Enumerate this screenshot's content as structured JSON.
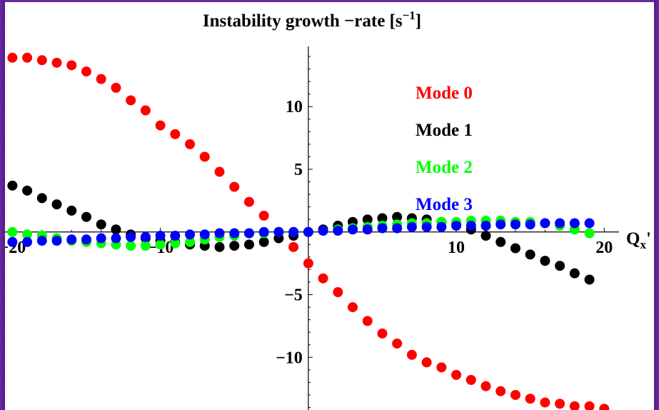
{
  "chart_data": {
    "type": "scatter",
    "title": "Instability growth −rate [s",
    "title_superscript": "−1",
    "title_suffix": "]",
    "xlabel": "Q",
    "xlabel_subscript": "x",
    "xlabel_suffix": "'",
    "ylabel": "",
    "xlim": [
      -20.5,
      21
    ],
    "ylim": [
      -14.2,
      14.8
    ],
    "x_ticks": [
      {
        "value": -20,
        "label": "−20"
      },
      {
        "value": -10,
        "label": "−10"
      },
      {
        "value": 10,
        "label": "10"
      },
      {
        "value": 20,
        "label": "20"
      }
    ],
    "y_ticks": [
      {
        "value": -10,
        "label": "−10"
      },
      {
        "value": -5,
        "label": "−5"
      },
      {
        "value": 5,
        "label": "5"
      },
      {
        "value": 10,
        "label": "10"
      }
    ],
    "grid": false,
    "legend_position": "top-right",
    "series": [
      {
        "name": "Mode 0",
        "color": "#ff0000",
        "points": [
          [
            -20,
            13.9
          ],
          [
            -19,
            13.9
          ],
          [
            -18,
            13.7
          ],
          [
            -17,
            13.5
          ],
          [
            -16,
            13.3
          ],
          [
            -15,
            12.8
          ],
          [
            -14,
            12.2
          ],
          [
            -13,
            11.5
          ],
          [
            -12,
            10.5
          ],
          [
            -11,
            9.7
          ],
          [
            -10,
            8.5
          ],
          [
            -9,
            7.8
          ],
          [
            -8,
            7.0
          ],
          [
            -7,
            6.0
          ],
          [
            -6,
            4.8
          ],
          [
            -5,
            3.6
          ],
          [
            -4,
            2.4
          ],
          [
            -3,
            1.3
          ],
          [
            -1,
            -1.2
          ],
          [
            0,
            -2.5
          ],
          [
            1,
            -3.7
          ],
          [
            2,
            -4.8
          ],
          [
            3,
            -6.0
          ],
          [
            4,
            -7.1
          ],
          [
            5,
            -8.1
          ],
          [
            6,
            -8.9
          ],
          [
            7,
            -9.8
          ],
          [
            8,
            -10.4
          ],
          [
            9,
            -10.8
          ],
          [
            10,
            -11.4
          ],
          [
            11,
            -11.8
          ],
          [
            12,
            -12.3
          ],
          [
            13,
            -12.7
          ],
          [
            14,
            -13.0
          ],
          [
            15,
            -13.3
          ],
          [
            16,
            -13.6
          ],
          [
            17,
            -13.7
          ],
          [
            18,
            -13.9
          ],
          [
            19,
            -13.9
          ],
          [
            20,
            -14.1
          ]
        ]
      },
      {
        "name": "Mode 1",
        "color": "#000000",
        "points": [
          [
            -20,
            3.7
          ],
          [
            -19,
            3.3
          ],
          [
            -18,
            2.7
          ],
          [
            -17,
            2.2
          ],
          [
            -16,
            1.7
          ],
          [
            -15,
            1.2
          ],
          [
            -14,
            0.6
          ],
          [
            -13,
            0.2
          ],
          [
            -12,
            -0.2
          ],
          [
            -11,
            -0.5
          ],
          [
            -10,
            -0.7
          ],
          [
            -9,
            -0.8
          ],
          [
            -8,
            -1.0
          ],
          [
            -7,
            -1.1
          ],
          [
            -6,
            -1.2
          ],
          [
            -5,
            -1.1
          ],
          [
            -4,
            -1.0
          ],
          [
            -3,
            -0.8
          ],
          [
            -2,
            -0.5
          ],
          [
            -1,
            -0.3
          ],
          [
            0,
            0
          ],
          [
            1,
            0.2
          ],
          [
            2,
            0.5
          ],
          [
            3,
            0.8
          ],
          [
            4,
            1.0
          ],
          [
            5,
            1.1
          ],
          [
            6,
            1.2
          ],
          [
            7,
            1.1
          ],
          [
            8,
            1.0
          ],
          [
            9,
            0.8
          ],
          [
            10,
            0.6
          ],
          [
            11,
            0.2
          ],
          [
            12,
            -0.3
          ],
          [
            13,
            -0.8
          ],
          [
            14,
            -1.3
          ],
          [
            15,
            -1.8
          ],
          [
            16,
            -2.3
          ],
          [
            17,
            -2.7
          ],
          [
            18,
            -3.3
          ],
          [
            19,
            -3.8
          ]
        ]
      },
      {
        "name": "Mode 2",
        "color": "#00ff00",
        "points": [
          [
            -20,
            0.0
          ],
          [
            -19,
            -0.2
          ],
          [
            -18,
            -0.3
          ],
          [
            -17,
            -0.5
          ],
          [
            -16,
            -0.7
          ],
          [
            -15,
            -0.8
          ],
          [
            -14,
            -0.9
          ],
          [
            -13,
            -1.0
          ],
          [
            -12,
            -1.1
          ],
          [
            -11,
            -1.1
          ],
          [
            -10,
            -1.0
          ],
          [
            -9,
            -0.9
          ],
          [
            -8,
            -0.8
          ],
          [
            -7,
            -0.6
          ],
          [
            -6,
            -0.4
          ],
          [
            -5,
            -0.3
          ],
          [
            -4,
            -0.1
          ],
          [
            -3,
            -0.1
          ],
          [
            -2,
            0.0
          ],
          [
            -1,
            0.0
          ],
          [
            0,
            0.0
          ],
          [
            1,
            0.1
          ],
          [
            2,
            0.2
          ],
          [
            3,
            0.3
          ],
          [
            4,
            0.4
          ],
          [
            5,
            0.5
          ],
          [
            6,
            0.6
          ],
          [
            7,
            0.7
          ],
          [
            8,
            0.7
          ],
          [
            9,
            0.8
          ],
          [
            10,
            0.8
          ],
          [
            11,
            0.9
          ],
          [
            12,
            0.9
          ],
          [
            13,
            0.9
          ],
          [
            14,
            0.8
          ],
          [
            15,
            0.8
          ],
          [
            16,
            0.7
          ],
          [
            17,
            0.5
          ],
          [
            18,
            0.2
          ],
          [
            19,
            -0.1
          ]
        ]
      },
      {
        "name": "Mode 3",
        "color": "#0000ff",
        "points": [
          [
            -20,
            -0.8
          ],
          [
            -19,
            -0.8
          ],
          [
            -18,
            -0.7
          ],
          [
            -17,
            -0.7
          ],
          [
            -16,
            -0.6
          ],
          [
            -15,
            -0.6
          ],
          [
            -14,
            -0.5
          ],
          [
            -13,
            -0.5
          ],
          [
            -12,
            -0.4
          ],
          [
            -11,
            -0.4
          ],
          [
            -10,
            -0.3
          ],
          [
            -9,
            -0.3
          ],
          [
            -8,
            -0.2
          ],
          [
            -7,
            -0.2
          ],
          [
            -6,
            -0.1
          ],
          [
            -5,
            -0.1
          ],
          [
            -4,
            -0.1
          ],
          [
            -3,
            0.0
          ],
          [
            -2,
            0.0
          ],
          [
            -1,
            0.0
          ],
          [
            0,
            0.0
          ],
          [
            1,
            0.1
          ],
          [
            2,
            0.1
          ],
          [
            3,
            0.2
          ],
          [
            4,
            0.2
          ],
          [
            5,
            0.3
          ],
          [
            6,
            0.3
          ],
          [
            7,
            0.4
          ],
          [
            8,
            0.4
          ],
          [
            9,
            0.4
          ],
          [
            10,
            0.5
          ],
          [
            11,
            0.5
          ],
          [
            12,
            0.5
          ],
          [
            13,
            0.6
          ],
          [
            14,
            0.6
          ],
          [
            15,
            0.6
          ],
          [
            16,
            0.7
          ],
          [
            17,
            0.7
          ],
          [
            18,
            0.7
          ],
          [
            19,
            0.7
          ]
        ]
      }
    ]
  }
}
